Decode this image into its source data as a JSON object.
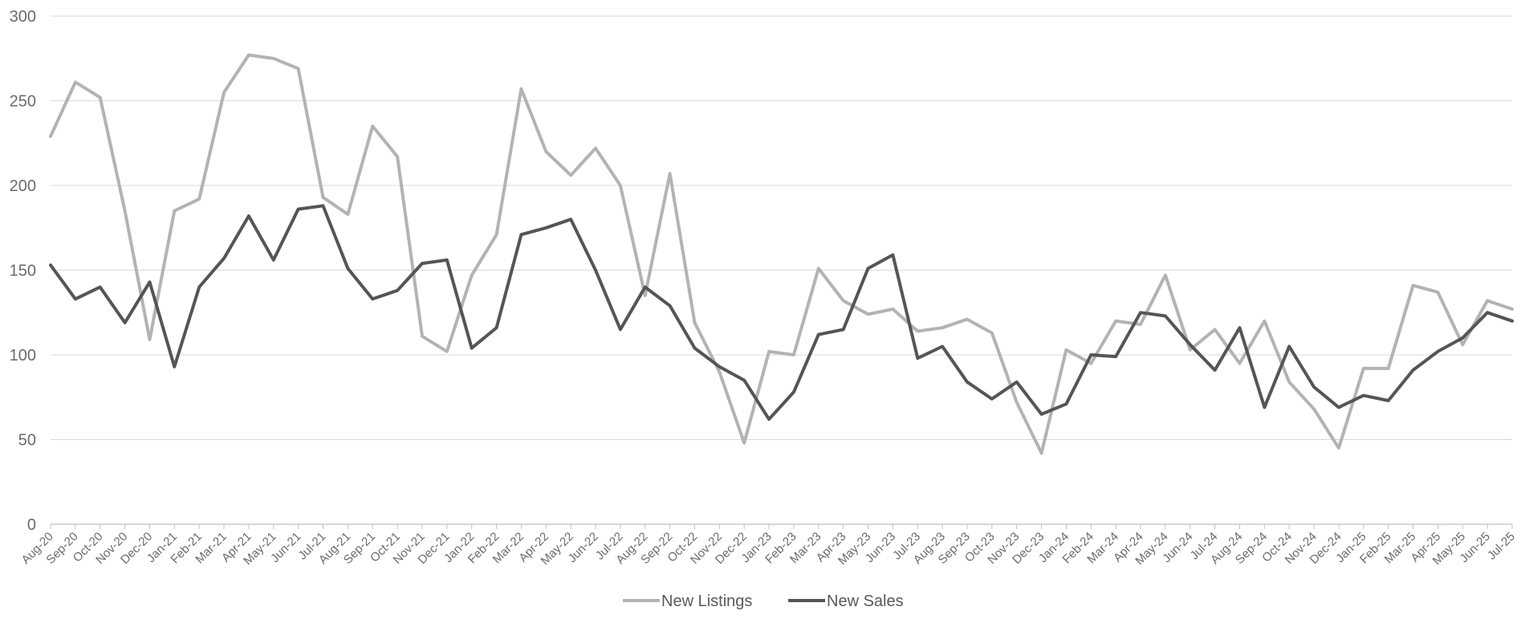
{
  "chart_data": {
    "type": "line",
    "title": "",
    "xlabel": "",
    "ylabel": "",
    "ylim": [
      0,
      300
    ],
    "yticks": [
      "0",
      "50",
      "100",
      "150",
      "200",
      "250",
      "300"
    ],
    "grid": true,
    "legend_position": "bottom-center",
    "categories": [
      "Aug-20",
      "Sep-20",
      "Oct-20",
      "Nov-20",
      "Dec-20",
      "Jan-21",
      "Feb-21",
      "Mar-21",
      "Apr-21",
      "May-21",
      "Jun-21",
      "Jul-21",
      "Aug-21",
      "Sep-21",
      "Oct-21",
      "Nov-21",
      "Dec-21",
      "Jan-22",
      "Feb-22",
      "Mar-22",
      "Apr-22",
      "May-22",
      "Jun-22",
      "Jul-22",
      "Aug-22",
      "Sep-22",
      "Oct-22",
      "Nov-22",
      "Dec-22",
      "Jan-23",
      "Feb-23",
      "Mar-23",
      "Apr-23",
      "May-23",
      "Jun-23",
      "Jul-23",
      "Aug-23",
      "Sep-23",
      "Oct-23",
      "Nov-23",
      "Dec-23",
      "Jan-24",
      "Feb-24",
      "Mar-24",
      "Apr-24",
      "May-24",
      "Jun-24",
      "Jul-24",
      "Aug-24",
      "Sep-24",
      "Oct-24",
      "Nov-24",
      "Dec-24",
      "Jan-25",
      "Feb-25",
      "Mar-25",
      "Apr-25",
      "May-25",
      "Jun-25",
      "Jul-25"
    ],
    "series": [
      {
        "name": "New Listings",
        "color": "#b3b3b3",
        "values": [
          229,
          261,
          252,
          185,
          109,
          185,
          192,
          255,
          277,
          275,
          269,
          193,
          183,
          235,
          217,
          111,
          102,
          147,
          171,
          257,
          220,
          206,
          222,
          200,
          135,
          207,
          119,
          90,
          48,
          102,
          100,
          151,
          132,
          124,
          127,
          114,
          116,
          121,
          113,
          72,
          42,
          103,
          95,
          120,
          118,
          147,
          103,
          115,
          95,
          120,
          84,
          68,
          45,
          92,
          92,
          141,
          137,
          106,
          132,
          127
        ]
      },
      {
        "name": "New Sales",
        "color": "#555555",
        "values": [
          153,
          133,
          140,
          119,
          143,
          93,
          140,
          157,
          182,
          156,
          186,
          188,
          151,
          133,
          138,
          154,
          156,
          104,
          116,
          171,
          175,
          180,
          150,
          115,
          140,
          129,
          104,
          93,
          85,
          62,
          78,
          112,
          115,
          151,
          159,
          98,
          105,
          84,
          74,
          84,
          65,
          71,
          100,
          99,
          125,
          123,
          106,
          91,
          116,
          69,
          105,
          81,
          69,
          76,
          73,
          91,
          102,
          110,
          125,
          120
        ]
      }
    ]
  }
}
